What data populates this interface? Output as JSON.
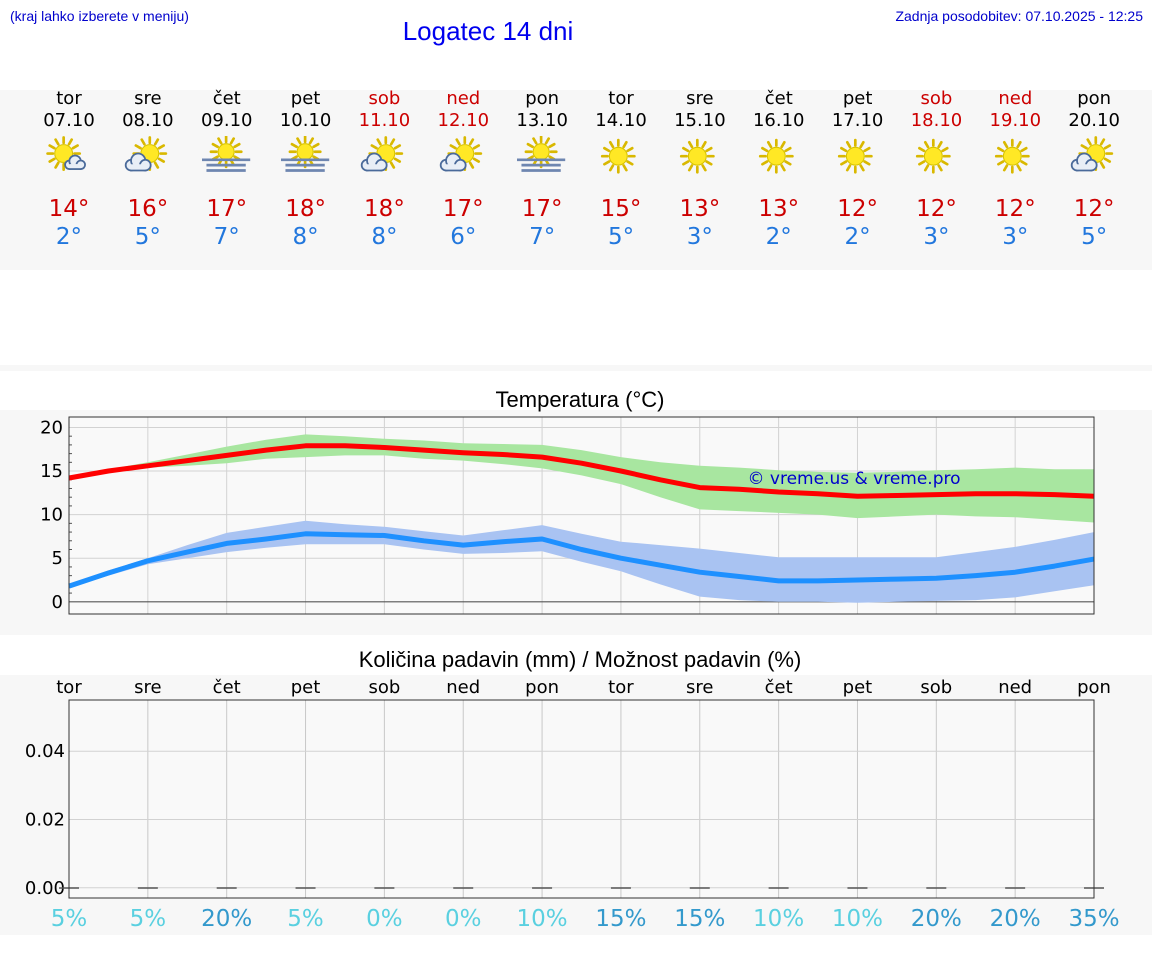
{
  "header": {
    "hint": "(kraj lahko izberete v meniju)",
    "title": "Logatec 14 dni",
    "updated": "Zadnja posodobitev: 07.10.2025 - 12:25"
  },
  "days": [
    {
      "name": "tor",
      "date": "07.10",
      "weekend": false,
      "icon": "sun-cloud-small",
      "tmax": "14°",
      "tmin": "2°"
    },
    {
      "name": "sre",
      "date": "08.10",
      "weekend": false,
      "icon": "sun-cloud",
      "tmax": "16°",
      "tmin": "5°"
    },
    {
      "name": "čet",
      "date": "09.10",
      "weekend": false,
      "icon": "sun-fog",
      "tmax": "17°",
      "tmin": "7°"
    },
    {
      "name": "pet",
      "date": "10.10",
      "weekend": false,
      "icon": "sun-fog",
      "tmax": "18°",
      "tmin": "8°"
    },
    {
      "name": "sob",
      "date": "11.10",
      "weekend": true,
      "icon": "sun-cloud",
      "tmax": "18°",
      "tmin": "8°"
    },
    {
      "name": "ned",
      "date": "12.10",
      "weekend": true,
      "icon": "sun-cloud",
      "tmax": "17°",
      "tmin": "6°"
    },
    {
      "name": "pon",
      "date": "13.10",
      "weekend": false,
      "icon": "sun-fog",
      "tmax": "17°",
      "tmin": "7°"
    },
    {
      "name": "tor",
      "date": "14.10",
      "weekend": false,
      "icon": "sun",
      "tmax": "15°",
      "tmin": "5°"
    },
    {
      "name": "sre",
      "date": "15.10",
      "weekend": false,
      "icon": "sun",
      "tmax": "13°",
      "tmin": "3°"
    },
    {
      "name": "čet",
      "date": "16.10",
      "weekend": false,
      "icon": "sun",
      "tmax": "13°",
      "tmin": "2°"
    },
    {
      "name": "pet",
      "date": "17.10",
      "weekend": false,
      "icon": "sun",
      "tmax": "12°",
      "tmin": "2°"
    },
    {
      "name": "sob",
      "date": "18.10",
      "weekend": true,
      "icon": "sun",
      "tmax": "12°",
      "tmin": "3°"
    },
    {
      "name": "ned",
      "date": "19.10",
      "weekend": true,
      "icon": "sun",
      "tmax": "12°",
      "tmin": "3°"
    },
    {
      "name": "pon",
      "date": "20.10",
      "weekend": false,
      "icon": "sun-cloud",
      "tmax": "12°",
      "tmin": "5°"
    }
  ],
  "chart_data": [
    {
      "type": "line",
      "title": "Temperatura (°C)",
      "ylim": [
        -1.4,
        21.2
      ],
      "yticks": [
        "0",
        "5",
        "10",
        "15",
        "20"
      ],
      "x": [
        0,
        0.5,
        1,
        1.5,
        2,
        2.5,
        3,
        3.5,
        4,
        4.5,
        5,
        5.5,
        6,
        6.5,
        7,
        7.5,
        8,
        8.5,
        9,
        9.5,
        10,
        10.5,
        11,
        11.5,
        12,
        12.5,
        13
      ],
      "series": [
        {
          "name": "max",
          "color": "#ff0000",
          "values": [
            14.2,
            15.0,
            15.6,
            16.2,
            16.8,
            17.4,
            17.9,
            17.9,
            17.7,
            17.4,
            17.1,
            16.9,
            16.6,
            15.9,
            15.0,
            14.0,
            13.1,
            12.9,
            12.6,
            12.4,
            12.1,
            12.2,
            12.3,
            12.4,
            12.4,
            12.3,
            12.1
          ],
          "band_low": [
            14.0,
            15.0,
            15.4,
            15.6,
            15.9,
            16.4,
            16.6,
            16.8,
            16.8,
            16.4,
            16.2,
            15.8,
            15.3,
            14.5,
            13.5,
            12.0,
            10.6,
            10.4,
            10.2,
            10.0,
            9.6,
            9.8,
            10.0,
            9.8,
            9.7,
            9.4,
            9.1
          ],
          "band_high": [
            14.3,
            15.2,
            16.0,
            16.9,
            17.8,
            18.6,
            19.2,
            19.0,
            18.7,
            18.5,
            18.2,
            18.1,
            18.0,
            17.4,
            16.6,
            16.0,
            15.6,
            15.4,
            15.1,
            14.9,
            14.8,
            14.9,
            15.1,
            15.2,
            15.4,
            15.2,
            15.2
          ]
        },
        {
          "name": "min",
          "color": "#1e90ff",
          "values": [
            1.8,
            3.3,
            4.7,
            5.7,
            6.7,
            7.2,
            7.8,
            7.7,
            7.6,
            7.0,
            6.5,
            6.9,
            7.2,
            6.0,
            5.0,
            4.2,
            3.4,
            2.9,
            2.4,
            2.4,
            2.5,
            2.6,
            2.7,
            3.0,
            3.4,
            4.1,
            4.9
          ],
          "band_low": [
            1.6,
            3.0,
            4.3,
            5.0,
            5.7,
            6.2,
            6.6,
            6.6,
            6.6,
            6.0,
            5.5,
            5.6,
            5.8,
            4.6,
            3.5,
            2.0,
            0.6,
            0.2,
            0.0,
            0.0,
            -0.1,
            0.0,
            0.1,
            0.2,
            0.5,
            1.2,
            1.9
          ],
          "band_high": [
            2.0,
            3.6,
            5.0,
            6.5,
            7.9,
            8.6,
            9.3,
            8.9,
            8.6,
            8.1,
            7.6,
            8.2,
            8.8,
            7.8,
            6.9,
            6.5,
            6.1,
            5.6,
            5.1,
            5.1,
            5.1,
            5.1,
            5.1,
            5.7,
            6.3,
            7.1,
            8.0
          ]
        }
      ],
      "watermark": "© vreme.us & vreme.pro"
    },
    {
      "type": "bar",
      "title": "Količina padavin (mm) / Možnost padavin (%)",
      "categories": [
        "tor",
        "sre",
        "čet",
        "pet",
        "sob",
        "ned",
        "pon",
        "tor",
        "sre",
        "čet",
        "pet",
        "sob",
        "ned",
        "pon"
      ],
      "values": [
        0,
        0,
        0,
        0,
        0,
        0,
        0,
        0,
        0,
        0,
        0,
        0,
        0,
        0
      ],
      "ylim": [
        -0.003,
        0.055
      ],
      "yticks": [
        "0.00",
        "0.02",
        "0.04"
      ],
      "chance": [
        "5%",
        "5%",
        "20%",
        "5%",
        "0%",
        "0%",
        "10%",
        "15%",
        "15%",
        "10%",
        "10%",
        "20%",
        "20%",
        "35%"
      ],
      "chance_levels": [
        5,
        5,
        20,
        5,
        0,
        0,
        10,
        15,
        15,
        10,
        10,
        20,
        20,
        35
      ]
    }
  ],
  "colors": {
    "low_chance": "#5ad0e0",
    "high_chance": "#3399cc",
    "max_band": "#a8e6a0",
    "min_band": "#a9c3f2"
  }
}
